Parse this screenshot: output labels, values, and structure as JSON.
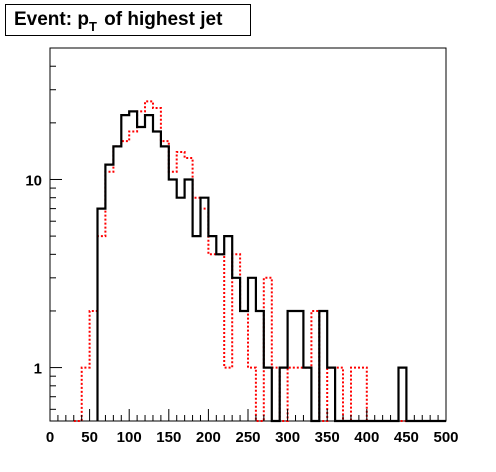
{
  "title": {
    "main": "Event: p",
    "sub": "T",
    "rest": " of highest jet"
  },
  "chart_data": {
    "type": "step",
    "title": "Event: p_T of highest jet",
    "xlabel": "",
    "ylabel": "",
    "xlim": [
      0,
      500
    ],
    "ylim": [
      0.52,
      50
    ],
    "yscale": "log",
    "bin_width": 10,
    "x_ticks": [
      0,
      50,
      100,
      150,
      200,
      250,
      300,
      350,
      400,
      450,
      500
    ],
    "x_tick_labels": [
      "0",
      "50",
      "100",
      "150",
      "200",
      "250",
      "300",
      "350",
      "400",
      "450",
      "500"
    ],
    "y_ticks": [
      1,
      10
    ],
    "y_tick_labels": [
      "1",
      "10"
    ],
    "grid": false,
    "legend": "none",
    "series": [
      {
        "style": "solid",
        "color": "#000000",
        "bin_lo": 60,
        "values": [
          7,
          12,
          15,
          22,
          23,
          19,
          22,
          18,
          15,
          10,
          8,
          10,
          5,
          8,
          5,
          4,
          5,
          3,
          2,
          3,
          2,
          1,
          0.52,
          1,
          2,
          2,
          1,
          0.52,
          2,
          1,
          0.52,
          0.52,
          0.52,
          0.52,
          0.52,
          0.52,
          0.52,
          0.52,
          1,
          0.52,
          0.52,
          0.52,
          0.52,
          0.52
        ]
      },
      {
        "style": "dotted",
        "color": "#ff0000",
        "bin_lo": 30,
        "values": [
          0.52,
          1,
          2,
          5,
          11,
          15,
          16,
          18,
          23,
          26,
          24,
          16,
          11,
          14,
          13,
          8,
          7,
          4,
          4,
          1,
          4,
          2,
          1,
          0.52,
          3,
          1,
          0.52,
          1,
          1,
          1,
          2,
          0.52,
          1,
          1,
          0.52,
          1,
          1,
          0.52,
          0.52,
          0.52,
          0.52,
          0.52,
          0.52,
          0.52,
          0.52,
          0.52,
          0.52
        ]
      }
    ]
  }
}
